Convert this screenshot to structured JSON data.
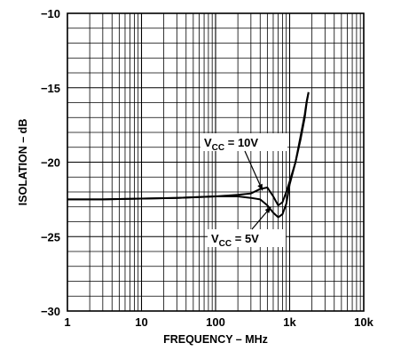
{
  "chart_data": {
    "type": "line",
    "title": "",
    "xlabel": "FREQUENCY – MHz",
    "ylabel": "ISOLATION – dB",
    "x_scale": "log",
    "xlim": [
      1,
      10000
    ],
    "ylim": [
      -30,
      -10
    ],
    "grid": true,
    "x_ticks": [
      {
        "value": 1,
        "label": "1"
      },
      {
        "value": 10,
        "label": "10"
      },
      {
        "value": 100,
        "label": "100"
      },
      {
        "value": 1000,
        "label": "1k"
      },
      {
        "value": 10000,
        "label": "10k"
      }
    ],
    "y_ticks": [
      {
        "value": -10,
        "label": "−10"
      },
      {
        "value": -15,
        "label": "−15"
      },
      {
        "value": -20,
        "label": "−20"
      },
      {
        "value": -25,
        "label": "−25"
      },
      {
        "value": -30,
        "label": "−30"
      }
    ],
    "series": [
      {
        "name": "VCC = 10V",
        "x": [
          1,
          3,
          10,
          30,
          100,
          200,
          300,
          400,
          500,
          600,
          700,
          800,
          900,
          1000,
          1200,
          1400,
          1600,
          1700,
          1800
        ],
        "y": [
          -22.5,
          -22.5,
          -22.45,
          -22.4,
          -22.3,
          -22.2,
          -22.1,
          -21.8,
          -21.7,
          -22.3,
          -22.9,
          -22.7,
          -22.0,
          -21.3,
          -20.0,
          -18.5,
          -17.0,
          -16.0,
          -15.3
        ]
      },
      {
        "name": "VCC = 5V",
        "x": [
          1,
          3,
          10,
          30,
          100,
          200,
          300,
          400,
          500,
          600,
          700,
          800,
          900,
          1000,
          1200,
          1400,
          1600,
          1700,
          1800
        ],
        "y": [
          -22.5,
          -22.5,
          -22.45,
          -22.4,
          -22.3,
          -22.3,
          -22.4,
          -22.5,
          -22.9,
          -23.4,
          -23.7,
          -23.5,
          -22.8,
          -21.5,
          -20.0,
          -18.3,
          -16.8,
          -15.9,
          -15.3
        ]
      }
    ],
    "annotations": [
      {
        "label": "V",
        "sub": "CC",
        "rest": " = 10V",
        "target_series": 0
      },
      {
        "label": "V",
        "sub": "CC",
        "rest": " = 5V",
        "target_series": 1
      }
    ]
  }
}
